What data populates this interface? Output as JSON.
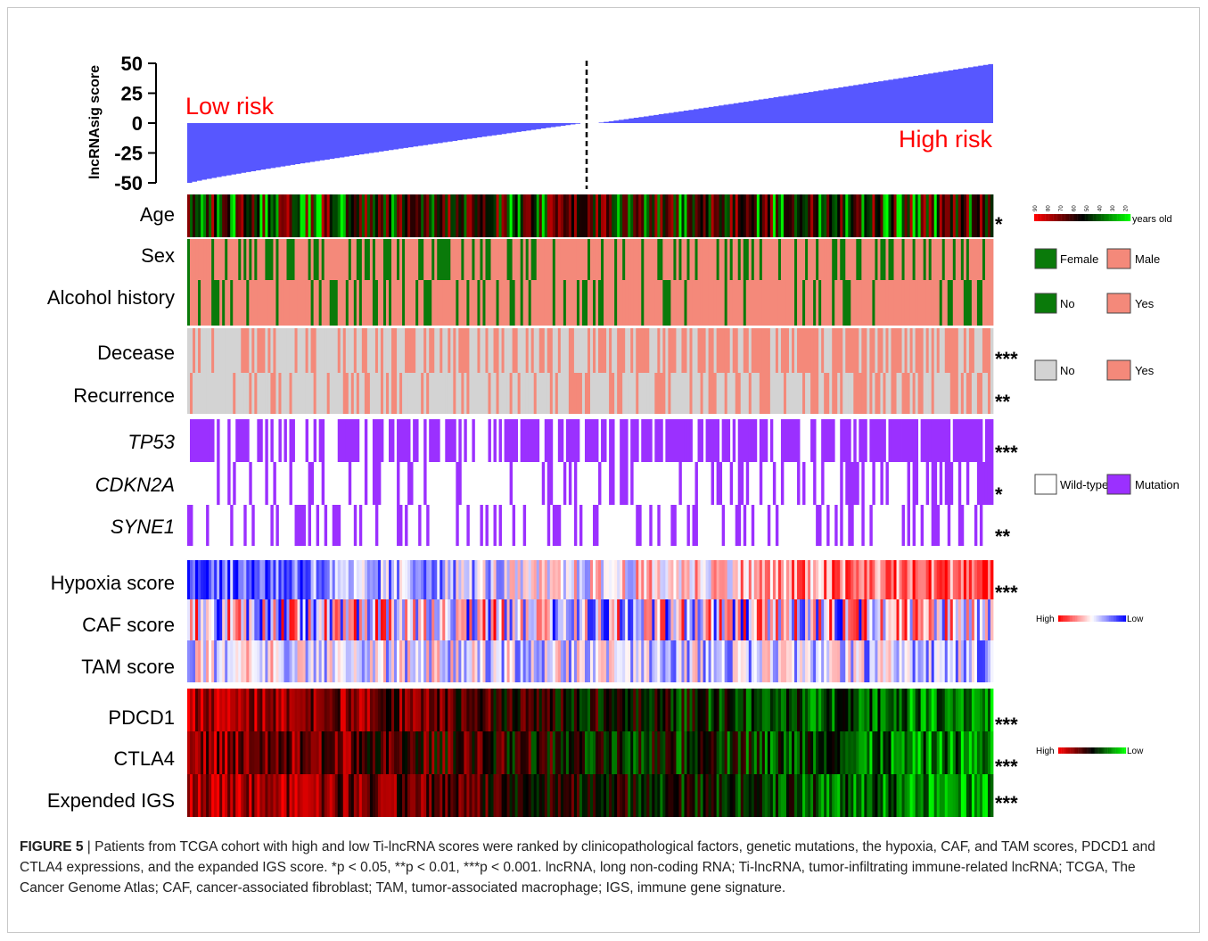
{
  "chart_data": {
    "type": "heatmap",
    "score_panel": {
      "type": "area",
      "ylabel": "lncRNAsig score",
      "yticks": [
        "50",
        "25",
        "0",
        "-25",
        "-50"
      ],
      "ylim": [
        -50,
        50
      ],
      "low_label": "Low risk",
      "high_label": "High risk",
      "low_range": [
        -50,
        0
      ],
      "high_range": [
        0,
        50
      ]
    },
    "rows": [
      {
        "label": "Age",
        "italic": false,
        "sig": "*",
        "palette": "age"
      },
      {
        "label": "Sex",
        "italic": false,
        "sig": "",
        "palette": "sex"
      },
      {
        "label": "Alcohol history",
        "italic": false,
        "sig": "",
        "palette": "sex"
      },
      {
        "label": "Decease",
        "italic": false,
        "sig": "***",
        "palette": "status"
      },
      {
        "label": "Recurrence",
        "italic": false,
        "sig": "**",
        "palette": "status"
      },
      {
        "label": "TP53",
        "italic": true,
        "sig": "***",
        "palette": "mut"
      },
      {
        "label": "CDKN2A",
        "italic": true,
        "sig": "*",
        "palette": "mut"
      },
      {
        "label": "SYNE1",
        "italic": true,
        "sig": "**",
        "palette": "mut"
      },
      {
        "label": "Hypoxia score",
        "italic": false,
        "sig": "***",
        "palette": "score"
      },
      {
        "label": "CAF score",
        "italic": false,
        "sig": "",
        "palette": "score"
      },
      {
        "label": "TAM score",
        "italic": false,
        "sig": "",
        "palette": "score"
      },
      {
        "label": "PDCD1",
        "italic": false,
        "sig": "***",
        "palette": "expr"
      },
      {
        "label": "CTLA4",
        "italic": false,
        "sig": "***",
        "palette": "expr"
      },
      {
        "label": "Expended IGS",
        "italic": false,
        "sig": "***",
        "palette": "expr"
      }
    ],
    "legends": {
      "age": {
        "ticks": [
          "90",
          "80",
          "70",
          "60",
          "50",
          "40",
          "30",
          "20"
        ],
        "unit": "years old",
        "colors": [
          "#ff0000",
          "#000000",
          "#00ff00"
        ]
      },
      "sex": {
        "items": [
          {
            "label": "Female",
            "color": "#0a7a0a"
          },
          {
            "label": "Male",
            "color": "#f4897a"
          }
        ]
      },
      "alcohol": {
        "items": [
          {
            "label": "No",
            "color": "#0a7a0a"
          },
          {
            "label": "Yes",
            "color": "#f4897a"
          }
        ]
      },
      "status": {
        "items": [
          {
            "label": "No",
            "color": "#d3d3d3"
          },
          {
            "label": "Yes",
            "color": "#f4897a"
          }
        ]
      },
      "mutation": {
        "items": [
          {
            "label": "Wild-type",
            "color": "#ffffff"
          },
          {
            "label": "Mutation",
            "color": "#9b30ff"
          }
        ]
      },
      "score": {
        "high": "High",
        "low": "Low",
        "colors": [
          "#ff0000",
          "#ffffff",
          "#0000ff"
        ]
      },
      "expr": {
        "high": "High",
        "low": "Low",
        "colors": [
          "#ff0000",
          "#000000",
          "#00ff00"
        ]
      }
    },
    "colors": {
      "score_fill": "#5757ff",
      "risk_text": "#ff0000",
      "divider": "#000000"
    }
  },
  "caption": {
    "label": "FIGURE 5",
    "text": " | Patients from TCGA cohort with high and low Ti-lncRNA scores were ranked by clinicopathological factors, genetic mutations, the hypoxia, CAF, and TAM scores, PDCD1 and CTLA4 expressions, and the expanded IGS score. *p < 0.05, **p < 0.01, ***p < 0.001. lncRNA, long non-coding RNA; Ti-lncRNA, tumor-infiltrating immune-related lncRNA; TCGA, The Cancer Genome Atlas; CAF, cancer-associated fibroblast; TAM, tumor-associated macrophage; IGS, immune gene signature."
  }
}
